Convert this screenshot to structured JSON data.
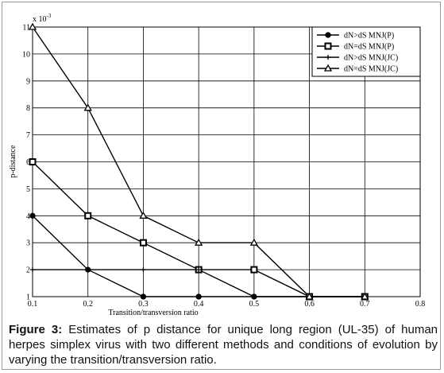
{
  "chart_data": {
    "type": "line",
    "xlabel": "Transition/transversion ratio",
    "ylabel": "p-distance",
    "y_multiplier": "x 10",
    "y_multiplier_exponent": "-3",
    "x": [
      0.1,
      0.2,
      0.3,
      0.4,
      0.5,
      0.6,
      0.7
    ],
    "series": [
      {
        "name": "dN>dS MNJ(P)",
        "color": "#000000",
        "marker": "circle",
        "values": [
          4,
          2,
          1,
          1,
          1,
          1,
          1
        ]
      },
      {
        "name": "dN=dS MNJ(P)",
        "color": "#000000",
        "marker": "square",
        "values": [
          6,
          4,
          3,
          2,
          2,
          1,
          1
        ]
      },
      {
        "name": "dN>dS MNJ(JC)",
        "color": "#000000",
        "marker": "plus",
        "values": [
          2,
          2,
          2,
          2,
          1,
          1,
          1
        ]
      },
      {
        "name": "dN=dS MNJ(JC)",
        "color": "#000000",
        "marker": "triangle",
        "values": [
          11,
          8,
          4,
          3,
          3,
          1,
          1
        ]
      }
    ],
    "xlim": [
      0.1,
      0.8
    ],
    "xticks": [
      0.1,
      0.2,
      0.3,
      0.4,
      0.5,
      0.6,
      0.7,
      0.8
    ],
    "ylim": [
      1,
      11
    ],
    "yticks": [
      1,
      2,
      3,
      4,
      5,
      6,
      7,
      8,
      9,
      10,
      11
    ],
    "grid": true,
    "legend": "top-right"
  },
  "caption": {
    "label": "Figure 3:",
    "text": "Estimates of p distance for unique long region (UL-35) of human herpes simplex virus with two different methods and conditions of evolution by varying the transition/transversion ratio."
  }
}
